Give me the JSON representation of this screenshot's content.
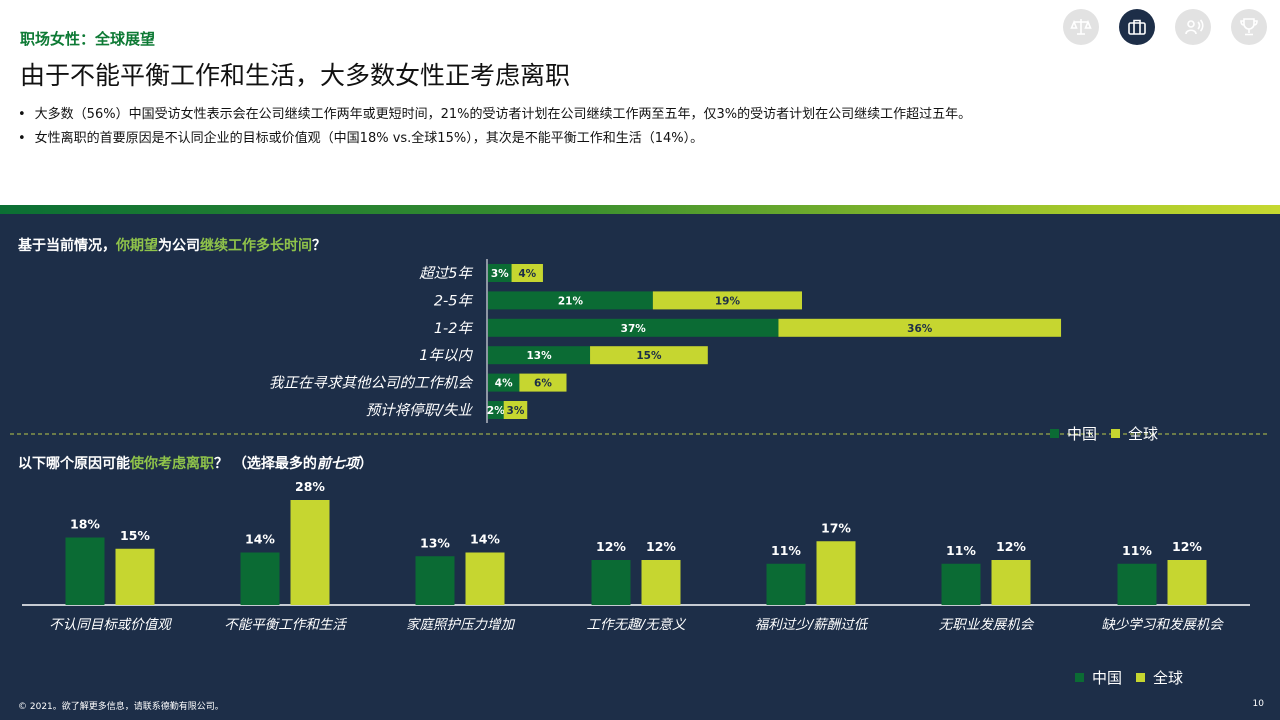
{
  "header": {
    "kicker": "职场女性：全球展望",
    "title": "由于不能平衡工作和生活，大多数女性正考虑离职",
    "bullets": [
      "大多数（56%）中国受访女性表示会在公司继续工作两年或更短时间，21%的受访者计划在公司继续工作两至五年，仅3%的受访者计划在公司继续工作超过五年。",
      "女性离职的首要原因是不认同企业的目标或价值观（中国18% vs.全球15%），其次是不能平衡工作和生活（14%）。"
    ],
    "icons": [
      "scales-icon",
      "briefcase-icon",
      "speech-icon",
      "trophy-icon"
    ]
  },
  "colors": {
    "china": "#0b6b34",
    "global": "#c6d630",
    "panel": "#1d2e48"
  },
  "questions": {
    "q1": {
      "p1": "基于当前情况，",
      "p2": "你期望",
      "p3": "为公司",
      "p4": "继续工作多长时间",
      "p5": "？"
    },
    "q2": {
      "p1": "以下哪个原因可能",
      "p2": "使你考虑离职",
      "p3": "？ （选择最多的",
      "p4": "前七项",
      "p5": "）"
    }
  },
  "chart_data": [
    {
      "type": "bar",
      "orientation": "horizontal",
      "stacked": true,
      "categories": [
        "超过5年",
        "2-5年",
        "1-2年",
        "1年以内",
        "我正在寻求其他公司的工作机会",
        "预计将停职/失业"
      ],
      "series": [
        {
          "name": "中国",
          "values": [
            3,
            21,
            37,
            13,
            4,
            2
          ]
        },
        {
          "name": "全球",
          "values": [
            4,
            19,
            36,
            15,
            6,
            3
          ]
        }
      ],
      "legend_position": "bottom-right"
    },
    {
      "type": "bar",
      "orientation": "vertical",
      "categories": [
        "不认同目标或价值观",
        "不能平衡工作和生活",
        "家庭照护压力增加",
        "工作无趣/无意义",
        "福利过少/薪酬过低",
        "无职业发展机会",
        "缺少学习和发展机会"
      ],
      "series": [
        {
          "name": "中国",
          "values": [
            18,
            14,
            13,
            12,
            11,
            11,
            11
          ]
        },
        {
          "name": "全球",
          "values": [
            15,
            28,
            14,
            12,
            17,
            12,
            12
          ]
        }
      ],
      "legend_position": "bottom-right"
    }
  ],
  "legend": {
    "china": "中国",
    "global": "全球"
  },
  "footer": {
    "copyright": "© 2021。欲了解更多信息，请联系德勤有限公司。",
    "page": "10"
  }
}
